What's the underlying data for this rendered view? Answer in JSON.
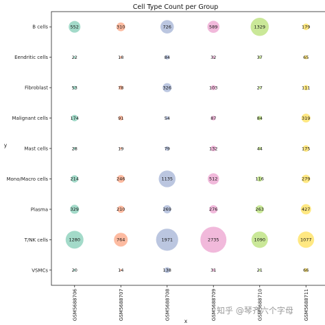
{
  "chart_data": {
    "type": "scatter",
    "title": "Cell Type Count per Group",
    "xlabel": "x",
    "ylabel": "y",
    "x_categories": [
      "GSM5688706",
      "GSM5688707",
      "GSM5688708",
      "GSM5688709",
      "GSM5688710",
      "GSM5688711"
    ],
    "y_categories": [
      "B cells",
      "Eendritic cells",
      "Fibroblast",
      "Malignant cells",
      "Mast cells",
      "Mono/Macro cells",
      "Plasma",
      "T/NK cells",
      "VSMCs"
    ],
    "series": [
      {
        "x": "GSM5688706",
        "color": "#66c2a5",
        "values": [
          552,
          22,
          53,
          174,
          28,
          214,
          329,
          1280,
          20
        ]
      },
      {
        "x": "GSM5688707",
        "color": "#fc8d62",
        "values": [
          310,
          18,
          78,
          91,
          19,
          246,
          210,
          764,
          14
        ]
      },
      {
        "x": "GSM5688708",
        "color": "#8da0cb",
        "values": [
          726,
          84,
          326,
          54,
          79,
          1135,
          269,
          1971,
          138
        ]
      },
      {
        "x": "GSM5688709",
        "color": "#e78ac3",
        "values": [
          589,
          32,
          103,
          87,
          132,
          512,
          276,
          2735,
          31
        ]
      },
      {
        "x": "GSM5688710",
        "color": "#a6d854",
        "values": [
          1329,
          37,
          27,
          84,
          44,
          116,
          263,
          1090,
          21
        ]
      },
      {
        "x": "GSM5688711",
        "color": "#ffd92f",
        "values": [
          179,
          65,
          111,
          319,
          175,
          279,
          427,
          1077,
          66
        ]
      }
    ],
    "grid": false,
    "legend": "none"
  },
  "watermark": "知乎 @琴齐六个字母"
}
